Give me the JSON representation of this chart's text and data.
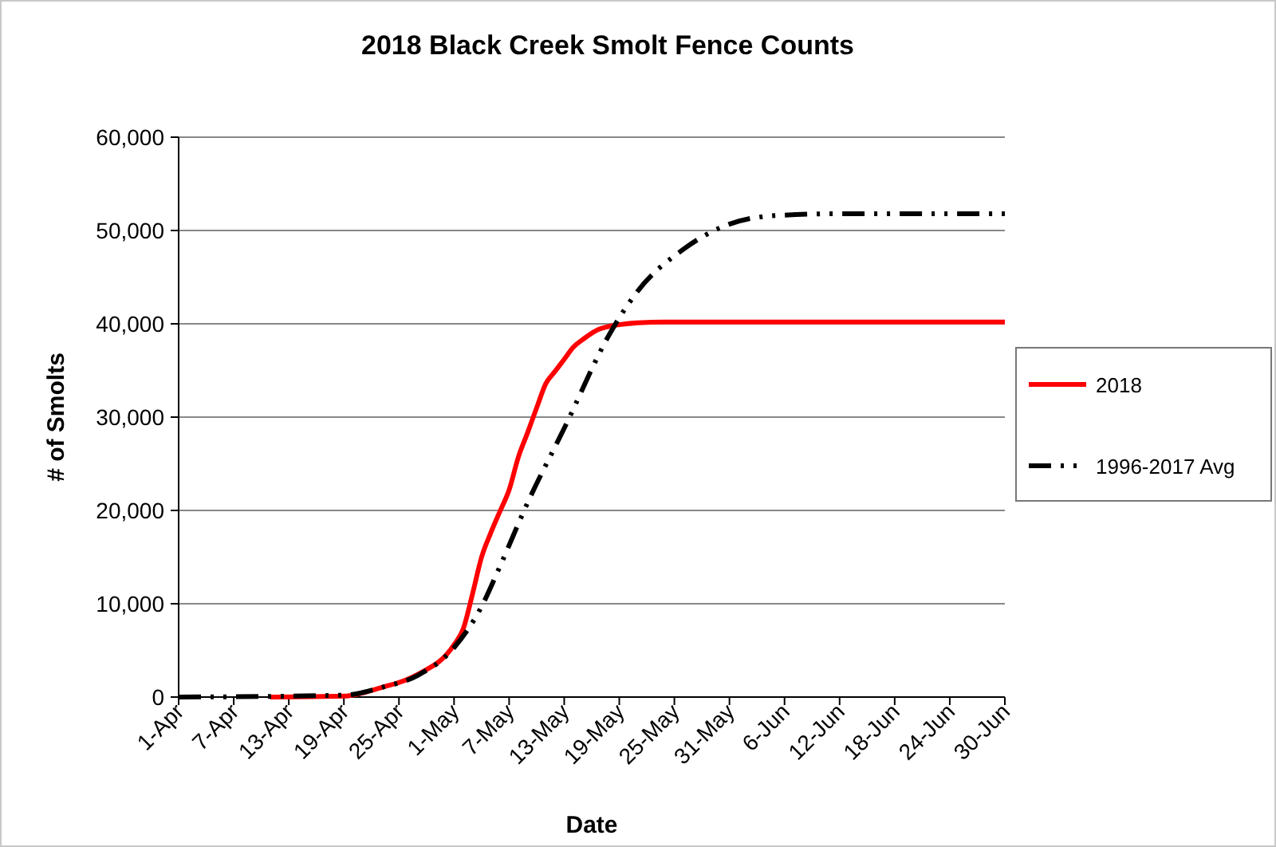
{
  "chart_data": {
    "type": "line",
    "title": "2018 Black Creek Smolt Fence Counts",
    "xlabel": "Date",
    "ylabel": "# of Smolts",
    "xlim": [
      "2018-04-01",
      "2018-06-30"
    ],
    "xticks": [
      {
        "value": "2018-04-01",
        "label": "1-Apr"
      },
      {
        "value": "2018-04-07",
        "label": "7-Apr"
      },
      {
        "value": "2018-04-13",
        "label": "13-Apr"
      },
      {
        "value": "2018-04-19",
        "label": "19-Apr"
      },
      {
        "value": "2018-04-25",
        "label": "25-Apr"
      },
      {
        "value": "2018-05-01",
        "label": "1-May"
      },
      {
        "value": "2018-05-07",
        "label": "7-May"
      },
      {
        "value": "2018-05-13",
        "label": "13-May"
      },
      {
        "value": "2018-05-19",
        "label": "19-May"
      },
      {
        "value": "2018-05-25",
        "label": "25-May"
      },
      {
        "value": "2018-05-31",
        "label": "31-May"
      },
      {
        "value": "2018-06-06",
        "label": "6-Jun"
      },
      {
        "value": "2018-06-12",
        "label": "12-Jun"
      },
      {
        "value": "2018-06-18",
        "label": "18-Jun"
      },
      {
        "value": "2018-06-24",
        "label": "24-Jun"
      },
      {
        "value": "2018-06-30",
        "label": "30-Jun"
      }
    ],
    "ylim": [
      0,
      60000
    ],
    "yticks": [
      0,
      {
        "value": 10000,
        "label": "10,000"
      },
      {
        "value": 20000,
        "label": "20,000"
      },
      {
        "value": 30000,
        "label": "30,000"
      },
      {
        "value": 40000,
        "label": "40,000"
      },
      {
        "value": 50000,
        "label": "50,000"
      },
      {
        "value": 60000,
        "label": "60,000"
      }
    ],
    "grid": "y",
    "legend": "right",
    "series": [
      {
        "name": "2018",
        "color": "#ff0000",
        "line_style": "solid",
        "x": [
          "2018-04-11",
          "2018-04-19",
          "2018-04-23",
          "2018-04-27",
          "2018-05-01",
          "2018-05-02",
          "2018-05-03",
          "2018-05-04",
          "2018-05-05",
          "2018-05-06",
          "2018-05-07",
          "2018-05-08",
          "2018-05-09",
          "2018-05-10",
          "2018-05-11",
          "2018-05-12",
          "2018-05-13",
          "2018-05-14",
          "2018-05-15",
          "2018-05-17",
          "2018-05-21",
          "2018-05-24",
          "2018-06-30"
        ],
        "values": [
          0,
          100,
          1000,
          2400,
          5600,
          7300,
          11000,
          15000,
          17600,
          19900,
          22200,
          25700,
          28300,
          31000,
          33600,
          34900,
          36200,
          37500,
          38300,
          39500,
          40100,
          40200,
          40200
        ]
      },
      {
        "name": "1996-2017 Avg",
        "color": "#000000",
        "line_style": "dashed",
        "x": [
          "2018-04-01",
          "2018-04-19",
          "2018-04-23",
          "2018-04-27",
          "2018-05-01",
          "2018-05-04",
          "2018-05-06",
          "2018-05-09",
          "2018-05-13",
          "2018-05-18",
          "2018-05-21",
          "2018-05-26",
          "2018-05-30",
          "2018-06-05",
          "2018-06-12",
          "2018-06-30"
        ],
        "values": [
          0,
          200,
          1000,
          2300,
          5300,
          9700,
          14000,
          20800,
          28800,
          39000,
          43500,
          48000,
          50300,
          51600,
          51800,
          51800
        ]
      }
    ]
  }
}
